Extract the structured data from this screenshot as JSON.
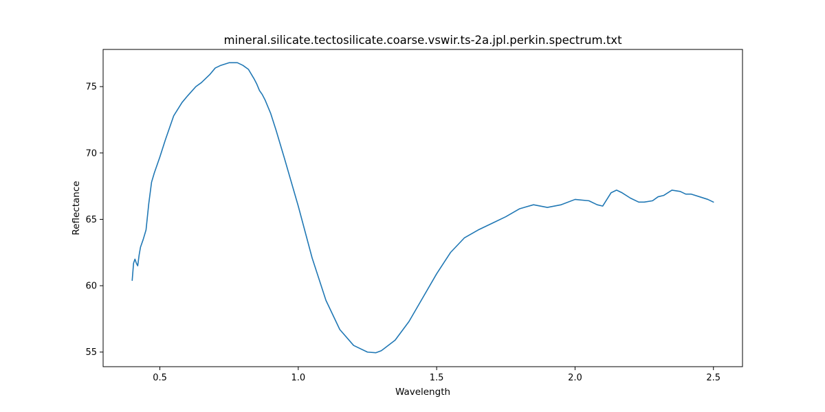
{
  "chart_data": {
    "type": "line",
    "title": "mineral.silicate.tectosilicate.coarse.vswir.ts-2a.jpl.perkin.spectrum.txt",
    "xlabel": "Wavelength",
    "ylabel": "Reflectance",
    "xlim": [
      0.295,
      2.605
    ],
    "ylim": [
      53.9,
      77.8
    ],
    "xticks": [
      0.5,
      1.0,
      1.5,
      2.0,
      2.5
    ],
    "xtick_labels": [
      "0.5",
      "1.0",
      "1.5",
      "2.0",
      "2.5"
    ],
    "yticks": [
      55,
      60,
      65,
      70,
      75
    ],
    "ytick_labels": [
      "55",
      "60",
      "65",
      "70",
      "75"
    ],
    "grid": false,
    "line_color": "#1f77b4",
    "series": [
      {
        "x": [
          0.4,
          0.405,
          0.41,
          0.415,
          0.42,
          0.425,
          0.43,
          0.44,
          0.45,
          0.46,
          0.47,
          0.48,
          0.5,
          0.52,
          0.55,
          0.58,
          0.6,
          0.63,
          0.65,
          0.68,
          0.7,
          0.72,
          0.75,
          0.78,
          0.8,
          0.82,
          0.84,
          0.85,
          0.86,
          0.87,
          0.88,
          0.9,
          0.92,
          0.95,
          1.0,
          1.05,
          1.1,
          1.15,
          1.2,
          1.25,
          1.28,
          1.3,
          1.35,
          1.4,
          1.45,
          1.5,
          1.55,
          1.6,
          1.65,
          1.7,
          1.75,
          1.8,
          1.85,
          1.9,
          1.95,
          2.0,
          2.05,
          2.08,
          2.1,
          2.13,
          2.15,
          2.17,
          2.2,
          2.23,
          2.25,
          2.28,
          2.3,
          2.32,
          2.35,
          2.38,
          2.4,
          2.42,
          2.45,
          2.48,
          2.5
        ],
        "y": [
          60.4,
          61.7,
          62.0,
          61.7,
          61.5,
          62.3,
          62.9,
          63.5,
          64.2,
          66.2,
          67.8,
          68.5,
          69.7,
          71.0,
          72.8,
          73.8,
          74.3,
          75.0,
          75.3,
          75.9,
          76.4,
          76.6,
          76.8,
          76.8,
          76.6,
          76.3,
          75.6,
          75.2,
          74.7,
          74.4,
          74.0,
          73.0,
          71.7,
          69.6,
          66.0,
          62.1,
          58.9,
          56.7,
          55.5,
          55.0,
          54.95,
          55.1,
          55.9,
          57.3,
          59.1,
          60.9,
          62.5,
          63.6,
          64.2,
          64.7,
          65.2,
          65.8,
          66.1,
          65.9,
          66.1,
          66.5,
          66.4,
          66.1,
          66.0,
          67.0,
          67.2,
          67.0,
          66.6,
          66.3,
          66.3,
          66.4,
          66.7,
          66.8,
          67.2,
          67.1,
          66.9,
          66.9,
          66.7,
          66.5,
          66.3
        ]
      }
    ]
  }
}
